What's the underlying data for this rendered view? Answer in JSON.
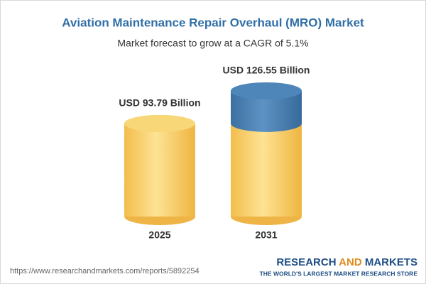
{
  "chart_data": {
    "type": "cylinder",
    "title": "Aviation Maintenance Repair Overhaul (MRO) Market",
    "subtitle": "Market forecast to grow at a CAGR of 5.1%",
    "categories": [
      "2025",
      "2031"
    ],
    "values": [
      93.79,
      126.55
    ],
    "value_labels": [
      "USD 93.79 Billion",
      "USD 126.55 Billion"
    ],
    "color": "#f5c55a",
    "growth_color": "#4a7fb2"
  },
  "footer": {
    "url": "https://www.researchandmarkets.com/reports/5892254",
    "brand": [
      "RESEARCH",
      "AND",
      "MARKETS"
    ],
    "tagline": "THE WORLD'S LARGEST MARKET RESEARCH STORE"
  }
}
